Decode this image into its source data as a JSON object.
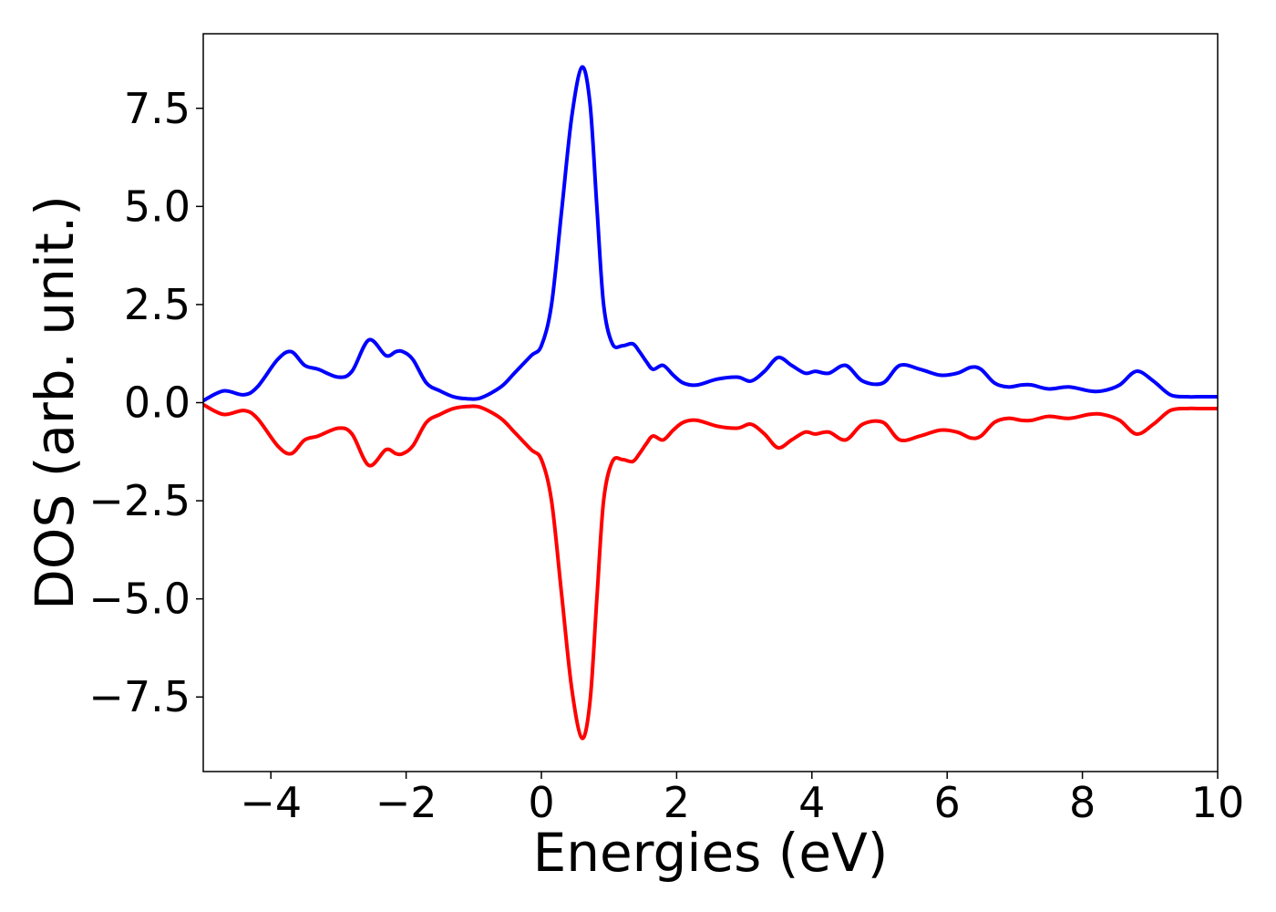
{
  "chart_data": {
    "type": "line",
    "xlabel": "Energies (eV)",
    "ylabel": "DOS (arb. unit.)",
    "xlim": [
      -5,
      10
    ],
    "ylim": [
      -9.4,
      9.4
    ],
    "xticks": [
      -4,
      -2,
      0,
      2,
      4,
      6,
      8,
      10
    ],
    "xtick_labels": [
      "−4",
      "−2",
      "0",
      "2",
      "4",
      "6",
      "8",
      "10"
    ],
    "yticks": [
      7.5,
      5.0,
      2.5,
      0.0,
      -2.5,
      -5.0,
      -7.5
    ],
    "ytick_labels": [
      "7.5",
      "5.0",
      "2.5",
      "0.0",
      "−2.5",
      "−5.0",
      "−7.5"
    ],
    "grid": false,
    "series": [
      {
        "color": "#0000ff",
        "x": [
          -5.0,
          -4.7,
          -4.4,
          -4.2,
          -3.9,
          -3.7,
          -3.5,
          -3.3,
          -3.0,
          -2.8,
          -2.55,
          -2.3,
          -2.15,
          -2.05,
          -1.9,
          -1.7,
          -1.5,
          -1.3,
          -1.1,
          -0.9,
          -0.6,
          -0.4,
          -0.15,
          0.0,
          0.15,
          0.3,
          0.45,
          0.6,
          0.72,
          0.82,
          0.92,
          1.05,
          1.2,
          1.35,
          1.45,
          1.55,
          1.65,
          1.8,
          1.95,
          2.1,
          2.3,
          2.6,
          2.9,
          3.1,
          3.3,
          3.5,
          3.7,
          3.9,
          4.05,
          4.25,
          4.5,
          4.75,
          5.05,
          5.3,
          5.6,
          5.9,
          6.15,
          6.35,
          6.5,
          6.7,
          6.9,
          7.1,
          7.25,
          7.5,
          7.8,
          8.1,
          8.3,
          8.55,
          8.8,
          9.05,
          9.3,
          9.55,
          9.7,
          9.85,
          10.0
        ],
        "y": [
          0.05,
          0.3,
          0.2,
          0.4,
          1.1,
          1.3,
          0.95,
          0.85,
          0.65,
          0.8,
          1.6,
          1.2,
          1.3,
          1.3,
          1.1,
          0.5,
          0.3,
          0.15,
          0.1,
          0.12,
          0.4,
          0.75,
          1.2,
          1.45,
          2.5,
          4.9,
          7.3,
          8.55,
          7.6,
          5.0,
          2.5,
          1.5,
          1.45,
          1.5,
          1.3,
          1.05,
          0.85,
          0.95,
          0.7,
          0.5,
          0.45,
          0.6,
          0.65,
          0.55,
          0.8,
          1.15,
          0.95,
          0.75,
          0.8,
          0.75,
          0.95,
          0.55,
          0.5,
          0.95,
          0.85,
          0.7,
          0.75,
          0.9,
          0.85,
          0.5,
          0.4,
          0.45,
          0.45,
          0.35,
          0.4,
          0.3,
          0.3,
          0.45,
          0.8,
          0.55,
          0.2,
          0.15,
          0.15,
          0.15,
          0.15
        ]
      },
      {
        "color": "#ff0000",
        "x": [
          -5.0,
          -4.7,
          -4.4,
          -4.2,
          -3.9,
          -3.7,
          -3.5,
          -3.3,
          -3.0,
          -2.8,
          -2.55,
          -2.3,
          -2.15,
          -2.05,
          -1.9,
          -1.7,
          -1.5,
          -1.3,
          -1.1,
          -0.9,
          -0.6,
          -0.4,
          -0.15,
          0.0,
          0.15,
          0.3,
          0.45,
          0.6,
          0.72,
          0.82,
          0.92,
          1.05,
          1.2,
          1.35,
          1.45,
          1.55,
          1.65,
          1.8,
          1.95,
          2.1,
          2.3,
          2.6,
          2.9,
          3.1,
          3.3,
          3.5,
          3.7,
          3.9,
          4.05,
          4.25,
          4.5,
          4.75,
          5.05,
          5.3,
          5.6,
          5.9,
          6.15,
          6.35,
          6.5,
          6.7,
          6.9,
          7.1,
          7.25,
          7.5,
          7.8,
          8.1,
          8.3,
          8.55,
          8.8,
          9.05,
          9.3,
          9.55,
          9.7,
          9.85,
          10.0
        ],
        "y": [
          -0.05,
          -0.3,
          -0.2,
          -0.4,
          -1.1,
          -1.3,
          -0.95,
          -0.85,
          -0.65,
          -0.8,
          -1.6,
          -1.2,
          -1.3,
          -1.3,
          -1.1,
          -0.5,
          -0.3,
          -0.15,
          -0.1,
          -0.12,
          -0.4,
          -0.75,
          -1.2,
          -1.45,
          -2.5,
          -4.9,
          -7.3,
          -8.55,
          -7.6,
          -5.0,
          -2.5,
          -1.5,
          -1.45,
          -1.5,
          -1.3,
          -1.05,
          -0.85,
          -0.95,
          -0.7,
          -0.5,
          -0.45,
          -0.6,
          -0.65,
          -0.55,
          -0.8,
          -1.15,
          -0.95,
          -0.75,
          -0.8,
          -0.75,
          -0.95,
          -0.55,
          -0.5,
          -0.95,
          -0.85,
          -0.7,
          -0.75,
          -0.9,
          -0.85,
          -0.5,
          -0.4,
          -0.45,
          -0.45,
          -0.35,
          -0.4,
          -0.3,
          -0.3,
          -0.45,
          -0.8,
          -0.55,
          -0.2,
          -0.15,
          -0.15,
          -0.15,
          -0.15
        ]
      }
    ]
  }
}
